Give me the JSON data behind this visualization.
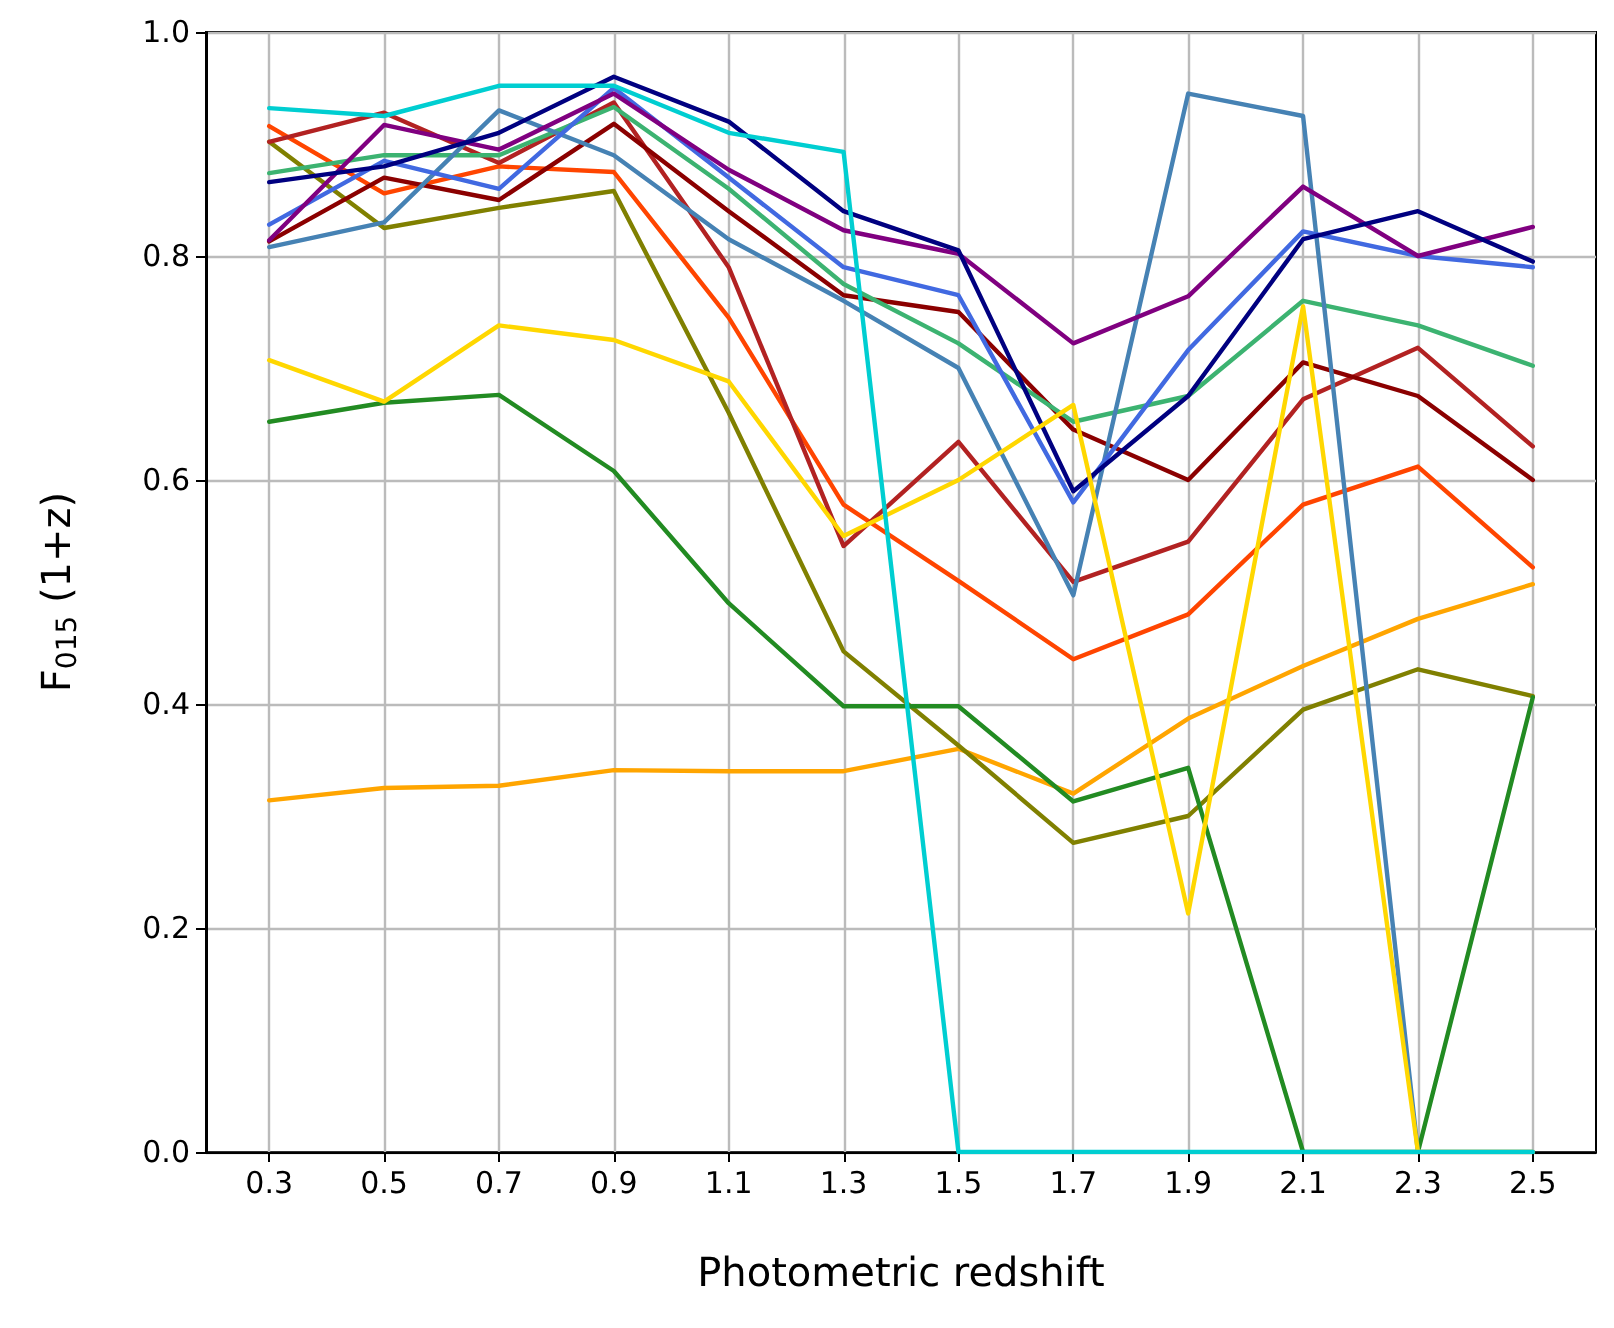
{
  "chart_data": {
    "type": "line",
    "xlabel": "Photometric redshift",
    "ylabel": "F$_{015}$ (1+z)",
    "x": [
      0.3,
      0.5,
      0.7,
      0.9,
      1.1,
      1.3,
      1.5,
      1.7,
      1.9,
      2.1,
      2.3,
      2.5
    ],
    "xlim": [
      0.19,
      2.61
    ],
    "xticks": [
      0.3,
      0.5,
      0.7,
      0.9,
      1.1,
      1.3,
      1.5,
      1.7,
      1.9,
      2.1,
      2.3,
      2.5
    ],
    "ylim": [
      0,
      1
    ],
    "yticks": [
      {
        "value": 0,
        "label": "0.0"
      },
      0.2,
      0.4,
      0.6,
      0.8,
      {
        "value": 1,
        "label": "1.0"
      }
    ],
    "grid": true,
    "marker": "none",
    "line_style": "solid",
    "series": [
      {
        "color": "#ffa500",
        "values": [
          0.314,
          0.325,
          0.327,
          0.341,
          0.34,
          0.34,
          0.36,
          0.32,
          0.387,
          0.434,
          0.476,
          0.507
        ]
      },
      {
        "color": "#808000",
        "values": [
          0.902,
          0.825,
          0.843,
          0.858,
          0.66,
          0.447,
          0.363,
          0.276,
          0.3,
          0.395,
          0.431,
          0.407
        ]
      },
      {
        "color": "#228b22",
        "values": [
          0.652,
          0.669,
          0.676,
          0.608,
          0.49,
          0.398,
          0.398,
          0.313,
          0.343,
          0.0,
          0.0,
          0.406
        ]
      },
      {
        "color": "#ff4500",
        "values": [
          0.916,
          0.856,
          0.88,
          0.875,
          0.745,
          0.578,
          0.51,
          0.44,
          0.48,
          0.578,
          0.612,
          0.522
        ]
      },
      {
        "color": "#b22222",
        "values": [
          0.902,
          0.928,
          0.883,
          0.937,
          0.79,
          0.541,
          0.634,
          0.509,
          0.545,
          0.672,
          0.718,
          0.63
        ]
      },
      {
        "color": "#8b0000",
        "values": [
          0.813,
          0.87,
          0.85,
          0.918,
          0.84,
          0.765,
          0.75,
          0.645,
          0.6,
          0.705,
          0.675,
          0.6
        ]
      },
      {
        "color": "#3cb371",
        "values": [
          0.874,
          0.89,
          0.89,
          0.933,
          0.86,
          0.775,
          0.722,
          0.652,
          0.675,
          0.76,
          0.738,
          0.702
        ]
      },
      {
        "color": "#4682b4",
        "values": [
          0.808,
          0.83,
          0.93,
          0.89,
          0.815,
          0.76,
          0.7,
          0.497,
          0.945,
          0.925,
          0.0,
          0.0
        ]
      },
      {
        "color": "#4169e1",
        "values": [
          0.828,
          0.885,
          0.86,
          0.95,
          0.87,
          0.79,
          0.765,
          0.58,
          0.716,
          0.822,
          0.8,
          0.79
        ]
      },
      {
        "color": "#800080",
        "values": [
          0.814,
          0.917,
          0.895,
          0.945,
          0.877,
          0.823,
          0.802,
          0.722,
          0.764,
          0.862,
          0.8,
          0.826
        ]
      },
      {
        "color": "#000080",
        "values": [
          0.866,
          0.88,
          0.91,
          0.96,
          0.92,
          0.84,
          0.805,
          0.59,
          0.675,
          0.815,
          0.84,
          0.795
        ]
      },
      {
        "color": "#ffd700",
        "values": [
          0.707,
          0.67,
          0.738,
          0.725,
          0.688,
          0.55,
          0.6,
          0.667,
          0.213,
          0.755,
          0.0,
          0.0
        ]
      },
      {
        "color": "#00ced1",
        "values": [
          0.932,
          0.925,
          0.952,
          0.952,
          0.91,
          0.893,
          0.0,
          0.0,
          0.0,
          0.0,
          0.0,
          0.0
        ]
      }
    ]
  }
}
